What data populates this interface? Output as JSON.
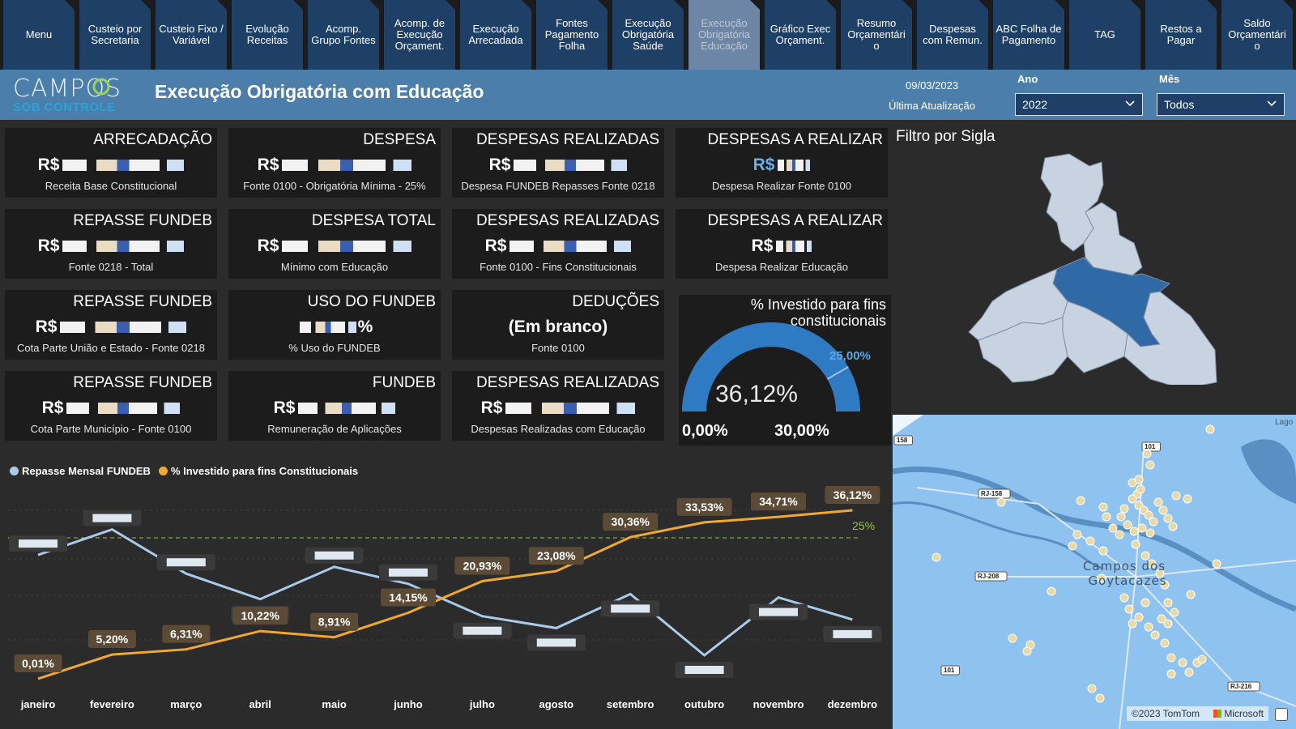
{
  "tabs": [
    {
      "label": "Menu",
      "active": false
    },
    {
      "label": "Custeio por Secretaria",
      "active": false
    },
    {
      "label": "Custeio Fixo / Variável",
      "active": false
    },
    {
      "label": "Evolução Receitas",
      "active": false
    },
    {
      "label": "Acomp. Grupo Fontes",
      "active": false
    },
    {
      "label": "Acomp. de Execução Orçament.",
      "active": false
    },
    {
      "label": "Execução Arrecadada",
      "active": false
    },
    {
      "label": "Fontes Pagamento Folha",
      "active": false
    },
    {
      "label": "Execução Obrigatória Saúde",
      "active": false
    },
    {
      "label": "Execução Obrigatória Educação",
      "active": true
    },
    {
      "label": "Gráfico Exec Orçament.",
      "active": false
    },
    {
      "label": "Resumo Orçamentári o",
      "active": false
    },
    {
      "label": "Despesas com Remun.",
      "active": false
    },
    {
      "label": "ABC Folha de Pagamento",
      "active": false
    },
    {
      "label": "TAG",
      "active": false
    },
    {
      "label": "Restos a Pagar",
      "active": false
    },
    {
      "label": "Saldo Orçamentári o",
      "active": false
    }
  ],
  "header": {
    "logo_line1": "CAMPOS",
    "logo_line2": "SOB CONTROLE",
    "title": "Execução Obrigatória com Educação",
    "date": "09/03/2023",
    "date_label": "Última Atualização",
    "year_label": "Ano",
    "year_value": "2022",
    "month_label": "Mês",
    "month_value": "Todos"
  },
  "cards": [
    {
      "title": "ARRECADAÇÃO",
      "value": "R$",
      "sub": "Receita Base Constitucional"
    },
    {
      "title": "DESPESA",
      "value": "R$",
      "sub": "Fonte 0100 - Obrigatória Mínima - 25%"
    },
    {
      "title": "DESPESAS REALIZADAS",
      "value": "R$",
      "sub": "Despesa FUNDEB Repasses Fonte 0218"
    },
    {
      "title": "DESPESAS A REALIZAR",
      "value": "R$",
      "sub": "Despesa Realizar Fonte 0100"
    },
    {
      "title": "REPASSE FUNDEB",
      "value": "R$",
      "sub": "Fonte 0218 - Total"
    },
    {
      "title": "DESPESA TOTAL",
      "value": "R$",
      "sub": "Mínimo com Educação"
    },
    {
      "title": "DESPESAS REALIZADAS",
      "value": "R$",
      "sub": "Fonte 0100 - Fins Constitucionais"
    },
    {
      "title": "DESPESAS A REALIZAR",
      "value": "R$",
      "sub": "Despesa Realizar Educação"
    },
    {
      "title": "REPASSE FUNDEB",
      "value": "R$",
      "sub": "Cota Parte União e Estado - Fonte 0218"
    },
    {
      "title": "USO DO FUNDEB",
      "value": "%",
      "sub": "% Uso do FUNDEB"
    },
    {
      "title": "DEDUÇÕES",
      "value": "(Em branco)",
      "sub": "Fonte 0100"
    },
    {
      "title": "REPASSE FUNDEB",
      "value": "R$",
      "sub": "Cota Parte Município - Fonte 0100"
    },
    {
      "title": "FUNDEB",
      "value": "R$",
      "sub": "Remuneração de Aplicações"
    },
    {
      "title": "DESPESAS REALIZADAS",
      "value": "R$",
      "sub": "Despesas Realizadas com Educação"
    }
  ],
  "gauge": {
    "title": "% Investido para fins constitucionais",
    "value": 36.12,
    "value_label": "36,12%",
    "min": 0,
    "max": 30,
    "min_label": "0,00%",
    "max_label": "30,00%",
    "target": 25,
    "target_label": "25,00%",
    "color": "#2e7bc4"
  },
  "filter_title": "Filtro por Sigla",
  "map": {
    "city_label_1": "Campos dos",
    "city_label_2": "Goytacazes",
    "attribution": "©2023 TomTom",
    "brand": "Microsoft",
    "road_labels": [
      "101",
      "RJ-158",
      "RJ-208",
      "101",
      "RJ-216",
      "158"
    ],
    "corner_label": "Lago"
  },
  "chart_data": {
    "type": "line",
    "categories": [
      "janeiro",
      "fevereiro",
      "março",
      "abril",
      "maio",
      "junho",
      "julho",
      "agosto",
      "setembro",
      "outubro",
      "novembro",
      "dezembro"
    ],
    "series": [
      {
        "name": "Repasse Mensal FUNDEB",
        "color": "#a9cbea",
        "values": [
          0.69,
          0.84,
          0.58,
          0.43,
          0.62,
          0.52,
          0.33,
          0.26,
          0.46,
          0.1,
          0.44,
          0.31
        ]
      },
      {
        "name": "% Investido para fins Constitucionais",
        "color": "#f0a830",
        "values": [
          0.01,
          5.2,
          6.31,
          10.22,
          8.91,
          14.15,
          20.93,
          23.08,
          30.36,
          33.53,
          34.71,
          36.12
        ],
        "labels": [
          "0,01%",
          "5,20%",
          "6,31%",
          "10,22%",
          "8,91%",
          "14,15%",
          "20,93%",
          "23,08%",
          "30,36%",
          "33,53%",
          "34,71%",
          "36,12%"
        ]
      }
    ],
    "reference_line": {
      "value": 25,
      "label": "25%",
      "color": "#9ac63c"
    }
  }
}
